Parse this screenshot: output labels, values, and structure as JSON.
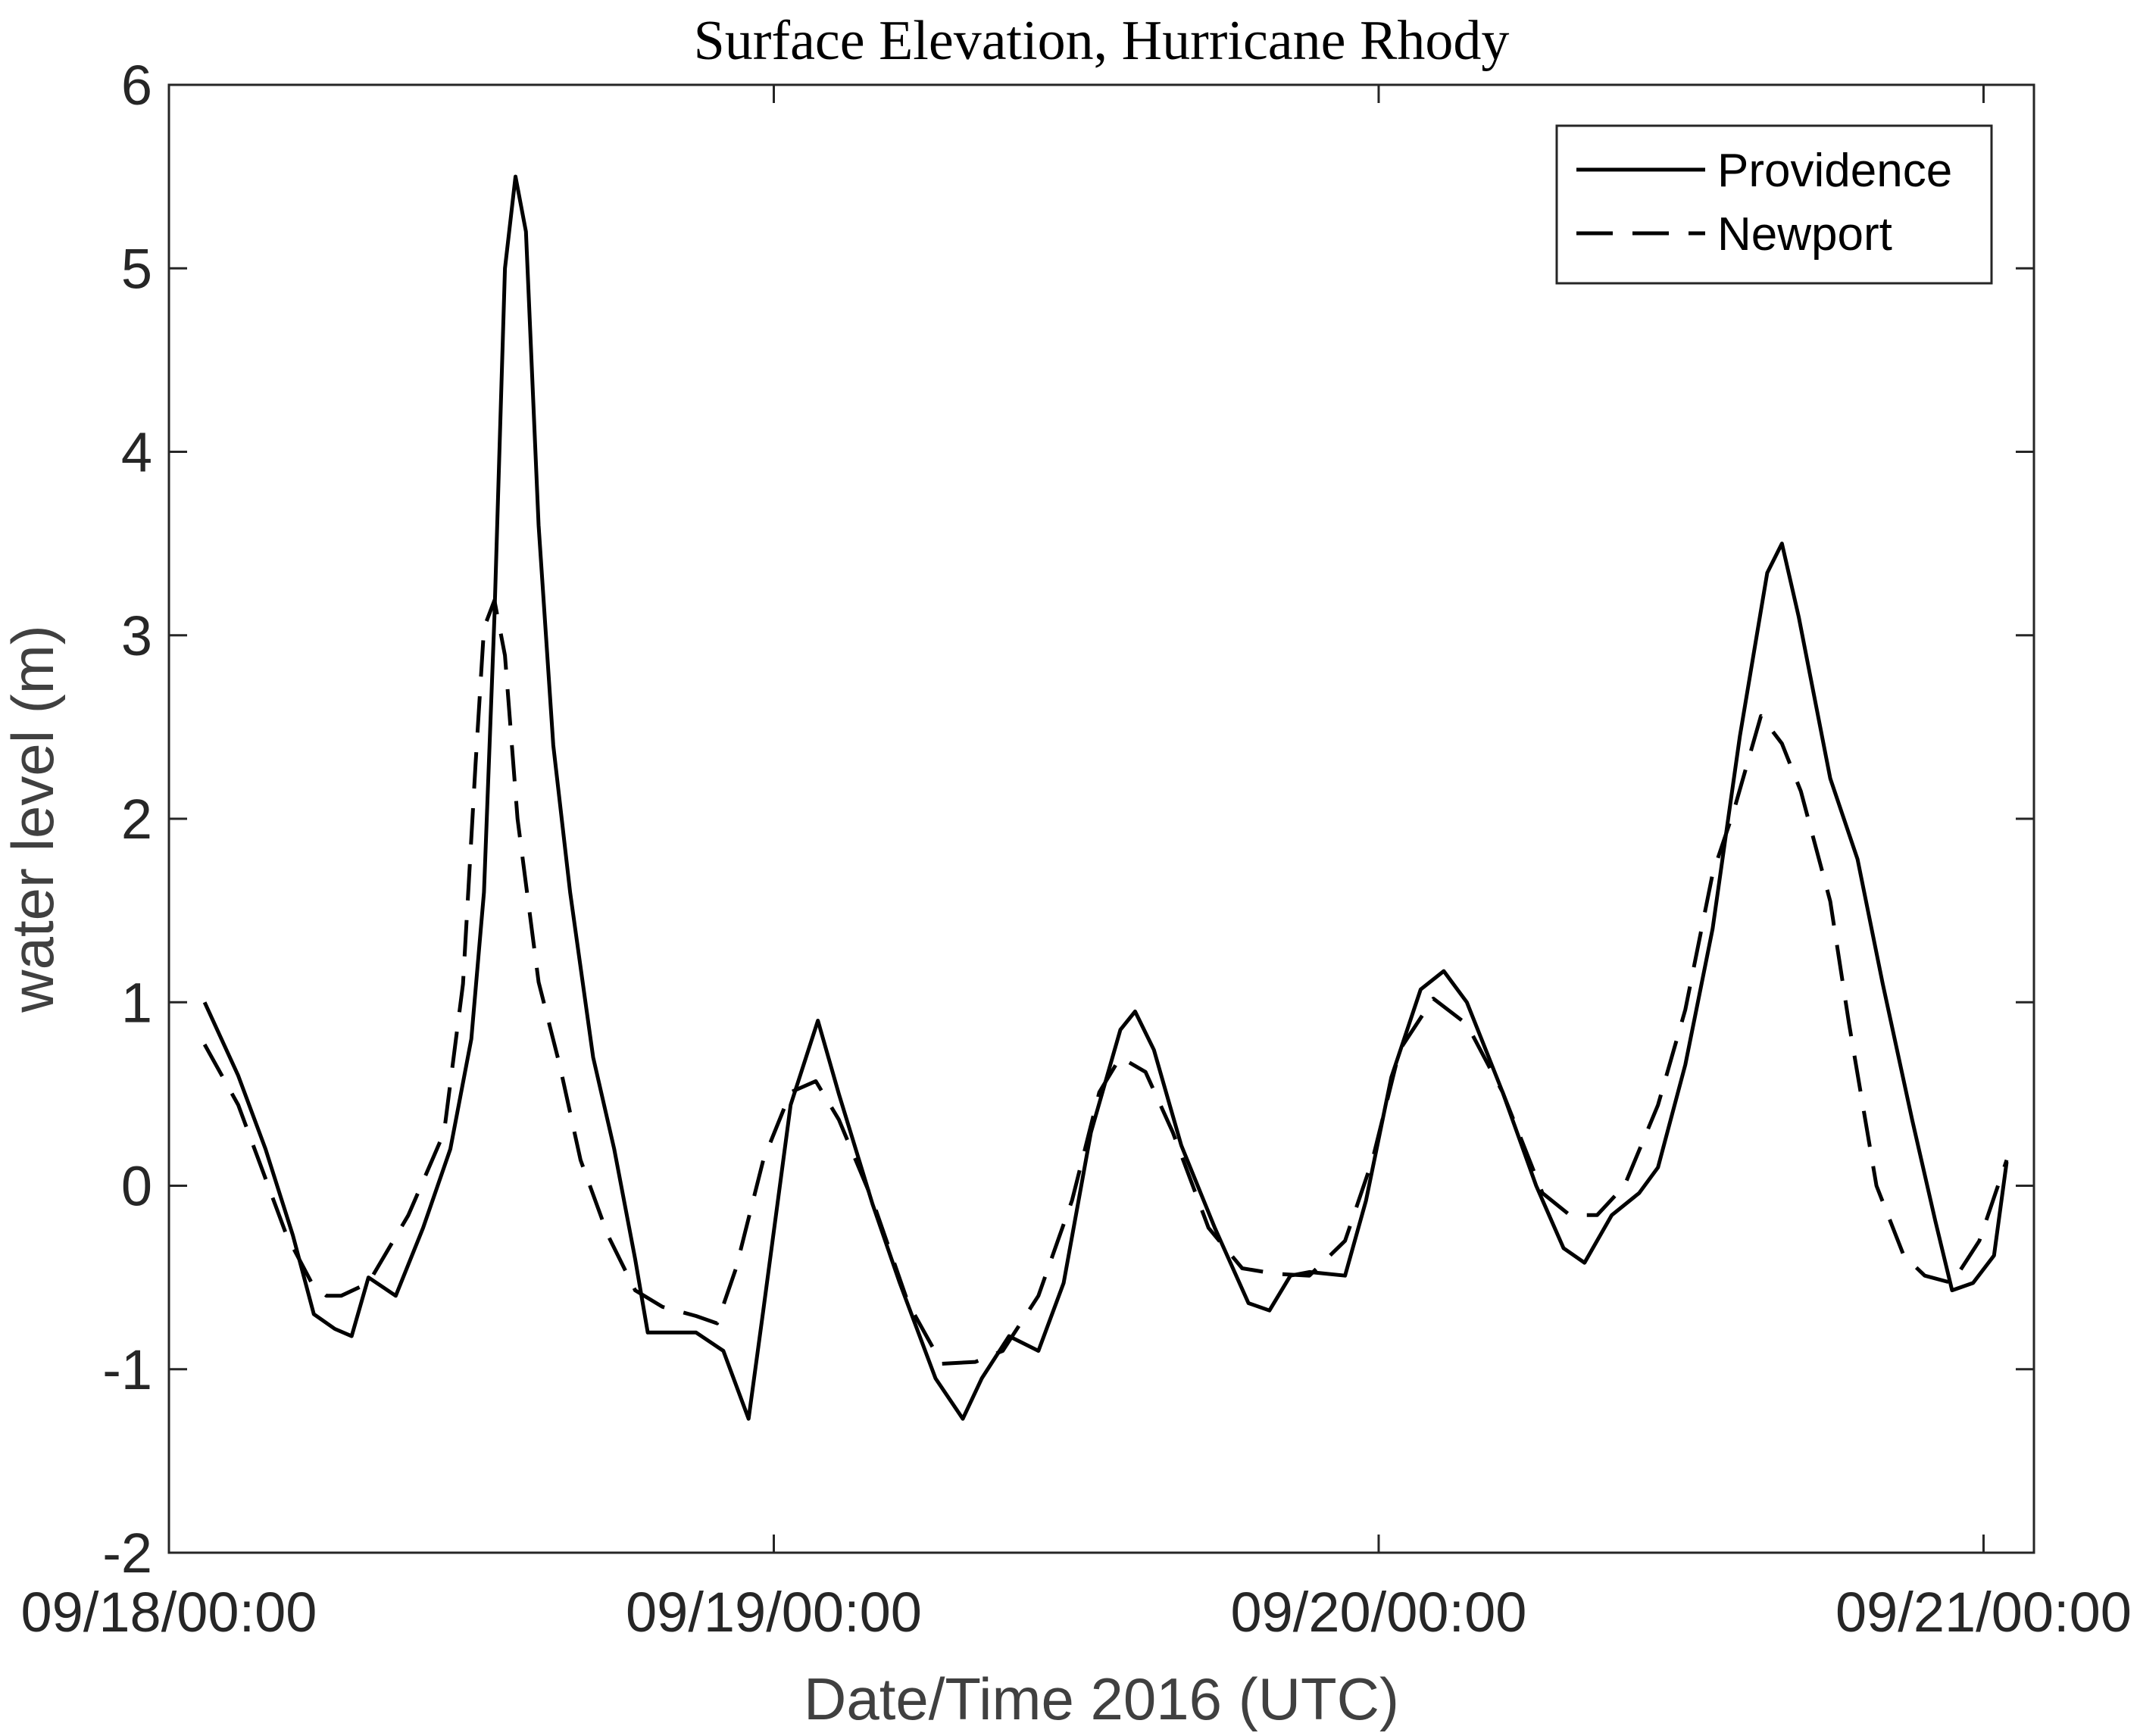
{
  "chart_data": {
    "type": "line",
    "title": "Surface Elevation, Hurricane Rhody",
    "xlabel": "Date/Time 2016 (UTC)",
    "ylabel": "water level (m)",
    "xlim": [
      "09/18/00:00",
      "09/21/02:00"
    ],
    "xticks": [
      "09/18/00:00",
      "09/19/00:00",
      "09/20/00:00",
      "09/21/00:00"
    ],
    "ylim": [
      -2,
      6
    ],
    "yticks": [
      -2,
      -1,
      0,
      1,
      2,
      3,
      4,
      5,
      6
    ],
    "grid": false,
    "legend": "upper right",
    "series": [
      {
        "name": "Providence",
        "color": "#000000",
        "dash": "solid",
        "x": [
          "09/18/01:25",
          "09/18/02:45",
          "09/18/03:50",
          "09/18/04:55",
          "09/18/05:45",
          "09/18/06:35",
          "09/18/07:15",
          "09/18/07:55",
          "09/18/09:00",
          "09/18/10:05",
          "09/18/11:10",
          "09/18/12:00",
          "09/18/12:30",
          "09/18/12:55",
          "09/18/13:20",
          "09/18/13:45",
          "09/18/14:10",
          "09/18/14:40",
          "09/18/15:15",
          "09/18/15:55",
          "09/18/16:50",
          "09/18/17:40",
          "09/18/18:30",
          "09/18/19:00",
          "09/18/19:50",
          "09/18/20:55",
          "09/18/22:00",
          "09/18/23:00",
          "09/18/23:35",
          "09/19/00:40",
          "09/19/01:45",
          "09/19/02:35",
          "09/19/03:55",
          "09/19/05:00",
          "09/19/06:25",
          "09/19/07:30",
          "09/19/08:15",
          "09/19/09:20",
          "09/19/10:30",
          "09/19/11:30",
          "09/19/12:35",
          "09/19/13:45",
          "09/19/14:20",
          "09/19/15:05",
          "09/19/16:10",
          "09/19/17:30",
          "09/19/18:50",
          "09/19/19:40",
          "09/19/20:30",
          "09/19/21:15",
          "09/19/22:40",
          "09/19/23:30",
          "09/20/00:30",
          "09/20/01:40",
          "09/20/02:35",
          "09/20/03:30",
          "09/20/04:55",
          "09/20/06:15",
          "09/20/07:20",
          "09/20/08:10",
          "09/20/09:15",
          "09/20/10:20",
          "09/20/11:05",
          "09/20/12:10",
          "09/20/13:15",
          "09/20/14:20",
          "09/20/15:25",
          "09/20/16:00",
          "09/20/16:40",
          "09/20/17:55",
          "09/20/19:00",
          "09/20/20:00",
          "09/20/21:10",
          "09/20/22:05",
          "09/20/22:45",
          "09/20/23:35",
          "09/21/00:25",
          "09/21/00:55"
        ],
        "values": [
          1.0,
          0.6,
          0.2,
          -0.27,
          -0.7,
          -0.78,
          -0.82,
          -0.5,
          -0.6,
          -0.23,
          0.2,
          0.8,
          1.6,
          3.1,
          5.0,
          5.5,
          5.2,
          3.6,
          2.4,
          1.6,
          0.7,
          0.2,
          -0.4,
          -0.8,
          -0.8,
          -0.8,
          -0.9,
          -1.27,
          -0.68,
          0.44,
          0.9,
          0.5,
          -0.1,
          -0.53,
          -1.05,
          -1.27,
          -1.05,
          -0.82,
          -0.9,
          -0.53,
          0.29,
          0.85,
          0.95,
          0.74,
          0.22,
          -0.23,
          -0.64,
          -0.68,
          -0.49,
          -0.47,
          -0.49,
          -0.08,
          0.59,
          1.07,
          1.17,
          1.0,
          0.51,
          0.0,
          -0.34,
          -0.42,
          -0.16,
          -0.04,
          0.1,
          0.66,
          1.4,
          2.45,
          3.34,
          3.5,
          3.1,
          2.22,
          1.78,
          1.1,
          0.36,
          -0.19,
          -0.57,
          -0.53,
          -0.38,
          0.13
        ]
      },
      {
        "name": "Newport",
        "color": "#000000",
        "dash": "dashed",
        "x": [
          "09/18/01:25",
          "09/18/02:45",
          "09/18/04:40",
          "09/18/05:40",
          "09/18/06:15",
          "09/18/06:50",
          "09/18/07:55",
          "09/18/09:30",
          "09/18/10:55",
          "09/18/11:40",
          "09/18/12:10",
          "09/18/12:30",
          "09/18/12:55",
          "09/18/13:20",
          "09/18/13:50",
          "09/18/14:40",
          "09/18/15:30",
          "09/18/16:20",
          "09/18/17:25",
          "09/18/18:30",
          "09/18/19:35",
          "09/18/20:55",
          "09/18/21:45",
          "09/18/22:30",
          "09/18/23:35",
          "09/19/00:40",
          "09/19/01:40",
          "09/19/02:35",
          "09/19/03:55",
          "09/19/05:20",
          "09/19/06:40",
          "09/19/08:00",
          "09/19/09:05",
          "09/19/10:30",
          "09/19/11:50",
          "09/19/12:55",
          "09/19/13:45",
          "09/19/14:45",
          "09/19/15:50",
          "09/19/17:15",
          "09/19/18:35",
          "09/19/19:55",
          "09/19/21:15",
          "09/19/22:40",
          "09/19/23:45",
          "09/20/00:50",
          "09/20/02:10",
          "09/20/03:30",
          "09/20/04:55",
          "09/20/06:30",
          "09/20/07:35",
          "09/20/08:40",
          "09/20/09:45",
          "09/20/11:05",
          "09/20/12:10",
          "09/20/13:15",
          "09/20/14:05",
          "09/20/15:10",
          "09/20/16:00",
          "09/20/16:45",
          "09/20/17:55",
          "09/20/18:40",
          "09/20/19:45",
          "09/20/20:50",
          "09/20/21:40",
          "09/20/22:45",
          "09/20/23:50",
          "09/21/00:55"
        ],
        "values": [
          0.77,
          0.44,
          -0.27,
          -0.53,
          -0.6,
          -0.6,
          -0.53,
          -0.16,
          0.29,
          1.1,
          2.3,
          3.04,
          3.19,
          2.89,
          2.0,
          1.11,
          0.66,
          0.14,
          -0.27,
          -0.57,
          -0.66,
          -0.71,
          -0.75,
          -0.45,
          0.14,
          0.51,
          0.57,
          0.36,
          -0.08,
          -0.64,
          -0.97,
          -0.96,
          -0.9,
          -0.6,
          -0.08,
          0.51,
          0.7,
          0.62,
          0.29,
          -0.23,
          -0.45,
          -0.48,
          -0.49,
          -0.3,
          0.14,
          0.74,
          1.02,
          0.88,
          0.51,
          -0.04,
          -0.16,
          -0.16,
          0.0,
          0.44,
          0.96,
          1.7,
          2.04,
          2.56,
          2.41,
          2.15,
          1.55,
          0.88,
          0.0,
          -0.38,
          -0.49,
          -0.53,
          -0.3,
          0.14
        ]
      }
    ]
  }
}
